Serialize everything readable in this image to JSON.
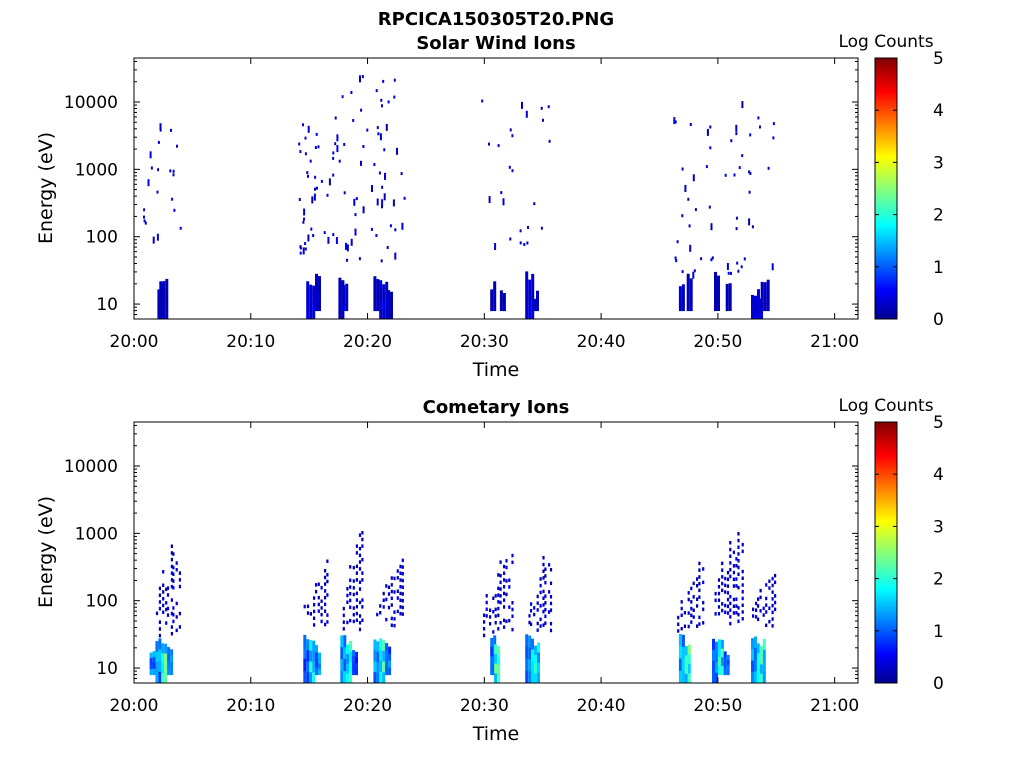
{
  "figure": {
    "title": "RPCICA150305T20.PNG"
  },
  "chart_data": [
    {
      "type": "heatmap",
      "title": "Solar Wind Ions",
      "xlabel": "Time",
      "ylabel": "Energy (eV)",
      "x_range": [
        "20:00",
        "21:02"
      ],
      "x_ticks": [
        "20:00",
        "20:10",
        "20:20",
        "20:30",
        "20:40",
        "20:50",
        "21:00"
      ],
      "y_scale": "log",
      "y_range": [
        6,
        45000
      ],
      "y_ticks": [
        "10",
        "100",
        "1000",
        "10000"
      ],
      "colorbar": {
        "label": "Log Counts",
        "range": [
          0,
          5
        ],
        "ticks": [
          "0",
          "1",
          "2",
          "3",
          "4",
          "5"
        ],
        "colormap": "jet"
      },
      "colors": {
        "background": "#ffffff",
        "low": "#00008f"
      },
      "low_energy_bands": [
        {
          "t0": "20:02",
          "t1": "20:02:30",
          "e_min": 6,
          "e_max": 22,
          "log_counts": 0.3
        },
        {
          "t0": "20:02:10",
          "t1": "20:02:50",
          "e_min": 6,
          "e_max": 22,
          "log_counts": 0.2
        },
        {
          "t0": "20:14:45",
          "t1": "20:15:20",
          "e_min": 6,
          "e_max": 22,
          "log_counts": 0.35
        },
        {
          "t0": "20:15:30",
          "t1": "20:15:50",
          "e_min": 8,
          "e_max": 28,
          "log_counts": 0.25
        },
        {
          "t0": "20:17:30",
          "t1": "20:17:50",
          "e_min": 6,
          "e_max": 28,
          "log_counts": 0.2
        },
        {
          "t0": "20:17:50",
          "t1": "20:18:20",
          "e_min": 8,
          "e_max": 22,
          "log_counts": 0.3
        },
        {
          "t0": "20:20:30",
          "t1": "20:20:50",
          "e_min": 8,
          "e_max": 28,
          "log_counts": 0.2
        },
        {
          "t0": "20:21:00",
          "t1": "20:21:40",
          "e_min": 6,
          "e_max": 22,
          "log_counts": 0.35
        },
        {
          "t0": "20:21:40",
          "t1": "20:22:00",
          "e_min": 6,
          "e_max": 15,
          "log_counts": 0.2
        },
        {
          "t0": "20:30:30",
          "t1": "20:30:50",
          "e_min": 8,
          "e_max": 22,
          "log_counts": 0.2
        },
        {
          "t0": "20:31:20",
          "t1": "20:31:40",
          "e_min": 8,
          "e_max": 15,
          "log_counts": 0.2
        },
        {
          "t0": "20:33:30",
          "t1": "20:34:10",
          "e_min": 6,
          "e_max": 28,
          "log_counts": 0.35
        },
        {
          "t0": "20:34:10",
          "t1": "20:34:40",
          "e_min": 8,
          "e_max": 15,
          "log_counts": 0.25
        },
        {
          "t0": "20:46:40",
          "t1": "20:47:10",
          "e_min": 8,
          "e_max": 22,
          "log_counts": 0.3
        },
        {
          "t0": "20:47:20",
          "t1": "20:47:40",
          "e_min": 8,
          "e_max": 28,
          "log_counts": 0.2
        },
        {
          "t0": "20:49:40",
          "t1": "20:50:00",
          "e_min": 8,
          "e_max": 28,
          "log_counts": 0.2
        },
        {
          "t0": "20:50:40",
          "t1": "20:51:00",
          "e_min": 8,
          "e_max": 22,
          "log_counts": 0.2
        },
        {
          "t0": "20:52:50",
          "t1": "20:53:50",
          "e_min": 6,
          "e_max": 16,
          "log_counts": 0.35
        },
        {
          "t0": "20:53:40",
          "t1": "20:54:20",
          "e_min": 8,
          "e_max": 28,
          "log_counts": 0.25
        }
      ],
      "scatter_counts": [
        {
          "t0": "20:00:30",
          "t1": "20:04:00",
          "e_min": 100,
          "e_max": 5000,
          "n": 22
        },
        {
          "t0": "20:14:00",
          "t1": "20:17:40",
          "e_min": 60,
          "e_max": 8000,
          "n": 45
        },
        {
          "t0": "20:17:40",
          "t1": "20:23:10",
          "e_min": 40,
          "e_max": 26000,
          "n": 55
        },
        {
          "t0": "20:29:40",
          "t1": "20:35:40",
          "e_min": 80,
          "e_max": 15000,
          "n": 25
        },
        {
          "t0": "20:46:00",
          "t1": "20:55:00",
          "e_min": 30,
          "e_max": 12000,
          "n": 55
        }
      ]
    },
    {
      "type": "heatmap",
      "title": "Cometary Ions",
      "xlabel": "Time",
      "ylabel": "Energy (eV)",
      "x_range": [
        "20:00",
        "21:02"
      ],
      "x_ticks": [
        "20:00",
        "20:10",
        "20:20",
        "20:30",
        "20:40",
        "20:50",
        "21:00"
      ],
      "y_scale": "log",
      "y_range": [
        6,
        45000
      ],
      "y_ticks": [
        "10",
        "100",
        "1000",
        "10000"
      ],
      "colorbar": {
        "label": "Log Counts",
        "range": [
          0,
          5
        ],
        "ticks": [
          "0",
          "1",
          "2",
          "3",
          "4",
          "5"
        ],
        "colormap": "jet"
      },
      "colors": {
        "background": "#ffffff",
        "low": "#00008f"
      },
      "low_energy_bands": [
        {
          "t0": "20:01:20",
          "t1": "20:01:50",
          "e_min": 8,
          "e_max": 20,
          "log_counts": 1.2
        },
        {
          "t0": "20:01:50",
          "t1": "20:02:20",
          "e_min": 6,
          "e_max": 28,
          "log_counts": 1.3
        },
        {
          "t0": "20:02:20",
          "t1": "20:02:50",
          "e_min": 6,
          "e_max": 25,
          "log_counts": 2.0
        },
        {
          "t0": "20:02:50",
          "t1": "20:03:10",
          "e_min": 8,
          "e_max": 22,
          "log_counts": 1.1
        },
        {
          "t0": "20:14:30",
          "t1": "20:15:00",
          "e_min": 6,
          "e_max": 30,
          "log_counts": 1.0
        },
        {
          "t0": "20:15:00",
          "t1": "20:15:30",
          "e_min": 6,
          "e_max": 28,
          "log_counts": 1.9
        },
        {
          "t0": "20:15:30",
          "t1": "20:16:00",
          "e_min": 8,
          "e_max": 22,
          "log_counts": 1.2
        },
        {
          "t0": "20:17:40",
          "t1": "20:18:10",
          "e_min": 6,
          "e_max": 28,
          "log_counts": 1.3
        },
        {
          "t0": "20:18:10",
          "t1": "20:18:40",
          "e_min": 6,
          "e_max": 25,
          "log_counts": 1.9
        },
        {
          "t0": "20:18:40",
          "t1": "20:19:00",
          "e_min": 8,
          "e_max": 20,
          "log_counts": 0.9
        },
        {
          "t0": "20:20:30",
          "t1": "20:21:00",
          "e_min": 6,
          "e_max": 30,
          "log_counts": 1.3
        },
        {
          "t0": "20:21:00",
          "t1": "20:21:30",
          "e_min": 6,
          "e_max": 28,
          "log_counts": 2.0
        },
        {
          "t0": "20:21:30",
          "t1": "20:22:00",
          "e_min": 8,
          "e_max": 22,
          "log_counts": 1.1
        },
        {
          "t0": "20:30:30",
          "t1": "20:30:50",
          "e_min": 8,
          "e_max": 28,
          "log_counts": 1.2
        },
        {
          "t0": "20:30:50",
          "t1": "20:31:10",
          "e_min": 6,
          "e_max": 25,
          "log_counts": 1.9
        },
        {
          "t0": "20:33:30",
          "t1": "20:34:00",
          "e_min": 6,
          "e_max": 30,
          "log_counts": 1.2
        },
        {
          "t0": "20:34:00",
          "t1": "20:34:40",
          "e_min": 6,
          "e_max": 25,
          "log_counts": 1.6
        },
        {
          "t0": "20:46:40",
          "t1": "20:47:10",
          "e_min": 6,
          "e_max": 30,
          "log_counts": 1.4
        },
        {
          "t0": "20:47:10",
          "t1": "20:47:40",
          "e_min": 6,
          "e_max": 28,
          "log_counts": 2.1
        },
        {
          "t0": "20:49:30",
          "t1": "20:50:00",
          "e_min": 6,
          "e_max": 28,
          "log_counts": 1.2
        },
        {
          "t0": "20:50:00",
          "t1": "20:50:30",
          "e_min": 8,
          "e_max": 25,
          "log_counts": 1.8
        },
        {
          "t0": "20:50:30",
          "t1": "20:51:00",
          "e_min": 8,
          "e_max": 20,
          "log_counts": 1.0
        },
        {
          "t0": "20:52:50",
          "t1": "20:53:20",
          "e_min": 6,
          "e_max": 28,
          "log_counts": 1.3
        },
        {
          "t0": "20:53:20",
          "t1": "20:54:00",
          "e_min": 6,
          "e_max": 25,
          "log_counts": 1.8
        }
      ],
      "streaks": [
        {
          "t0": "20:01:50",
          "t1": "20:04:00",
          "e_min": 30,
          "e_max": 1300
        },
        {
          "t0": "20:14:30",
          "t1": "20:16:40",
          "e_min": 40,
          "e_max": 500
        },
        {
          "t0": "20:17:50",
          "t1": "20:19:40",
          "e_min": 30,
          "e_max": 1600
        },
        {
          "t0": "20:20:40",
          "t1": "20:23:10",
          "e_min": 40,
          "e_max": 500
        },
        {
          "t0": "20:29:50",
          "t1": "20:32:30",
          "e_min": 30,
          "e_max": 850
        },
        {
          "t0": "20:33:40",
          "t1": "20:35:50",
          "e_min": 30,
          "e_max": 800
        },
        {
          "t0": "20:46:30",
          "t1": "20:48:50",
          "e_min": 30,
          "e_max": 500
        },
        {
          "t0": "20:49:40",
          "t1": "20:52:10",
          "e_min": 40,
          "e_max": 2600
        },
        {
          "t0": "20:52:50",
          "t1": "20:55:00",
          "e_min": 40,
          "e_max": 500
        }
      ]
    }
  ]
}
